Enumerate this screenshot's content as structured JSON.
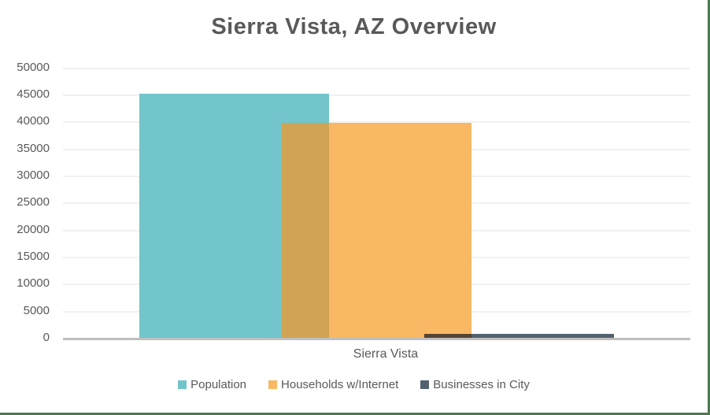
{
  "chart_data": {
    "type": "bar",
    "title": "Sierra Vista, AZ Overview",
    "categories": [
      "Sierra Vista"
    ],
    "series": [
      {
        "name": "Population",
        "values": [
          45100
        ],
        "color": "#72C5CA"
      },
      {
        "name": "Households w/Internet",
        "values": [
          39800
        ],
        "color": "#F9B863"
      },
      {
        "name": "Businesses in City",
        "values": [
          700
        ],
        "color": "#54626F"
      }
    ],
    "ylim": [
      0,
      50000
    ],
    "ytick_step": 5000,
    "ytick_labels": [
      "0",
      "5000",
      "10000",
      "15000",
      "20000",
      "25000",
      "30000",
      "35000",
      "40000",
      "45000",
      "50000"
    ],
    "grid": true,
    "legend_position": "bottom",
    "overlap_colors": {
      "population_households": "#D0A355",
      "households_businesses": "#564434"
    },
    "colors": {
      "text": "#595959",
      "gridline": "#F1F1F1",
      "axis_line": "#BFBFBF",
      "frame_border": "#4E7850",
      "background": "#FFFFFF"
    }
  }
}
